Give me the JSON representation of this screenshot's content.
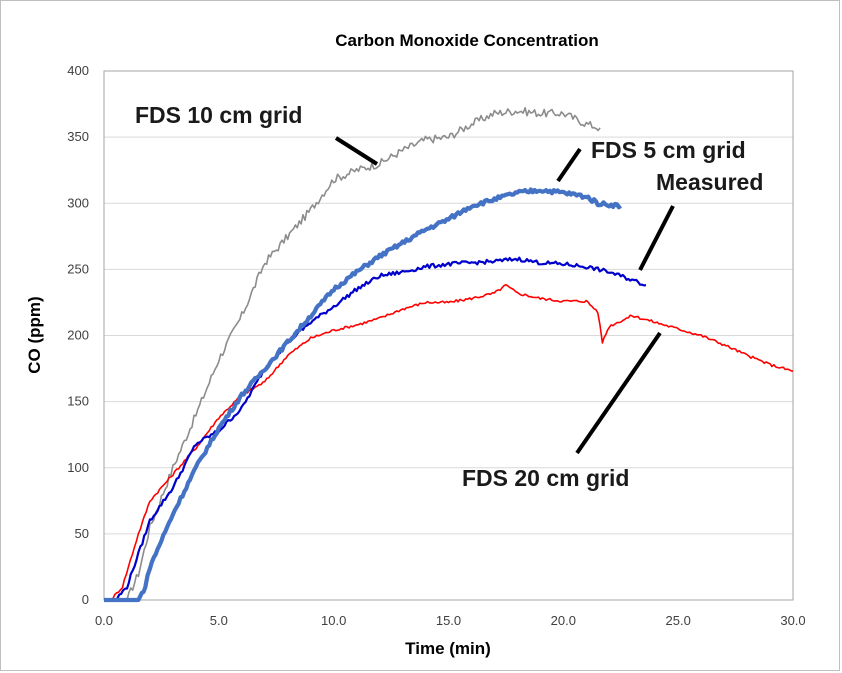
{
  "chart_data": {
    "type": "line",
    "title": "Carbon Monoxide Concentration",
    "xlabel": "Time (min)",
    "ylabel": "CO (ppm)",
    "xlim": [
      0,
      30
    ],
    "ylim": [
      0,
      400
    ],
    "x_ticks": [
      0,
      5,
      10,
      15,
      20,
      25,
      30
    ],
    "x_tick_labels": [
      "0.0",
      "5.0",
      "10.0",
      "15.0",
      "20.0",
      "25.0",
      "30.0"
    ],
    "y_ticks": [
      0,
      50,
      100,
      150,
      200,
      250,
      300,
      350,
      400
    ],
    "y_tick_labels": [
      "0",
      "50",
      "100",
      "150",
      "200",
      "250",
      "300",
      "350",
      "400"
    ],
    "grid": "horizontal",
    "series": [
      {
        "name": "FDS 10 cm grid",
        "color": "#8c8c8c",
        "x": [
          0,
          1.0,
          1.5,
          2.0,
          3.0,
          4.0,
          5.0,
          6.0,
          7.0,
          8.0,
          9.0,
          10.0,
          11.0,
          12.0,
          13.0,
          14.0,
          15.0,
          16.0,
          17.0,
          18.0,
          19.0,
          20.0,
          21.0,
          21.6
        ],
        "y": [
          0,
          0,
          20,
          55,
          100,
          140,
          182,
          215,
          255,
          275,
          295,
          318,
          325,
          330,
          340,
          348,
          350,
          360,
          368,
          370,
          368,
          368,
          360,
          357
        ]
      },
      {
        "name": "FDS 5 cm grid",
        "color": "#4472c4",
        "x": [
          0,
          1.5,
          1.8,
          2.0,
          3.0,
          4.0,
          5.0,
          6.0,
          7.0,
          8.0,
          9.0,
          10.0,
          11.0,
          12.0,
          13.0,
          14.0,
          15.0,
          16.0,
          17.0,
          18.0,
          19.0,
          20.0,
          21.0,
          21.5,
          22.5
        ],
        "y": [
          0,
          0,
          10,
          25,
          65,
          100,
          130,
          155,
          175,
          195,
          215,
          235,
          248,
          260,
          270,
          280,
          288,
          298,
          303,
          308,
          310,
          308,
          305,
          300,
          298
        ]
      },
      {
        "name": "Measured",
        "color": "#0000cc",
        "x": [
          0,
          0.5,
          1.0,
          2.0,
          3.0,
          4.0,
          5.0,
          6.0,
          7.0,
          8.0,
          9.0,
          10.0,
          11.0,
          12.0,
          13.0,
          14.0,
          15.0,
          16.0,
          17.0,
          18.0,
          19.0,
          20.0,
          21.0,
          22.0,
          23.0,
          23.6
        ],
        "y": [
          0,
          0,
          10,
          60,
          85,
          118,
          128,
          145,
          175,
          195,
          210,
          222,
          235,
          245,
          248,
          252,
          254,
          255,
          256,
          258,
          255,
          254,
          252,
          248,
          242,
          238
        ]
      },
      {
        "name": "FDS 20 cm grid",
        "color": "#ff0000",
        "x": [
          0,
          0.3,
          0.8,
          1.5,
          2.0,
          3.0,
          4.0,
          5.0,
          6.0,
          7.0,
          8.0,
          9.0,
          10.0,
          11.0,
          12.0,
          13.0,
          14.0,
          15.0,
          16.0,
          17.0,
          17.5,
          18.0,
          19.0,
          20.0,
          21.0,
          21.5,
          21.7,
          22.0,
          23.0,
          24.0,
          25.0,
          26.0,
          27.0,
          28.0,
          29.0,
          30.0
        ],
        "y": [
          0,
          0,
          10,
          50,
          75,
          95,
          115,
          138,
          155,
          165,
          185,
          198,
          204,
          208,
          213,
          220,
          225,
          225,
          228,
          232,
          238,
          232,
          228,
          226,
          226,
          218,
          195,
          207,
          215,
          210,
          205,
          200,
          193,
          185,
          178,
          173
        ]
      }
    ],
    "annotations": [
      {
        "text": "FDS 10 cm grid",
        "series": "FDS 10 cm grid"
      },
      {
        "text": "FDS 5 cm grid",
        "series": "FDS 5 cm grid"
      },
      {
        "text": "Measured",
        "series": "Measured"
      },
      {
        "text": "FDS 20 cm grid",
        "series": "FDS 20 cm grid"
      }
    ]
  }
}
